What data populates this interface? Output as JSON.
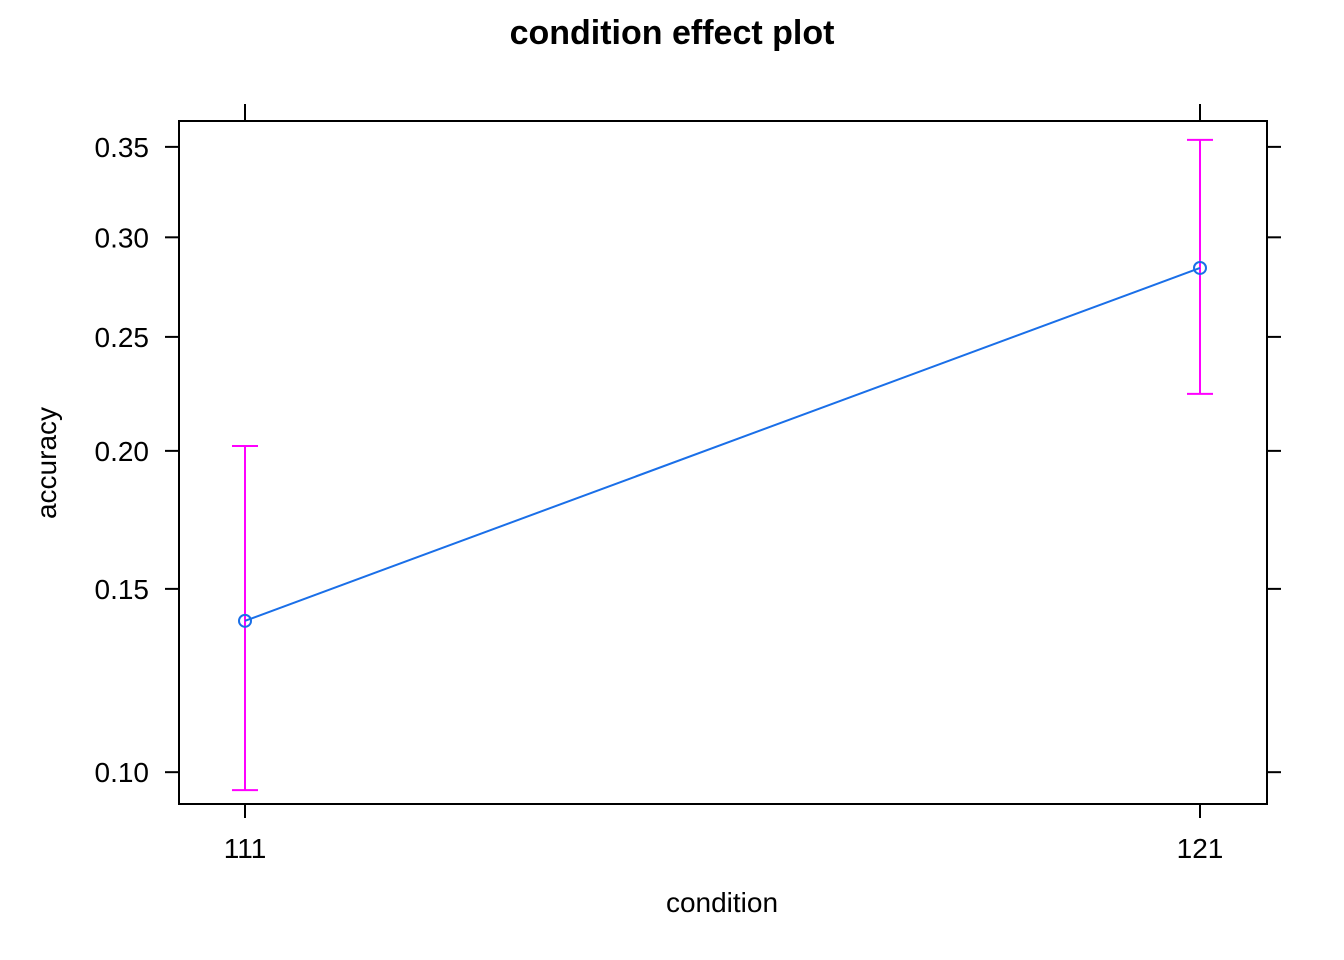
{
  "chart_data": {
    "type": "line",
    "title": "condition effect plot",
    "xlabel": "condition",
    "ylabel": "accuracy",
    "categories": [
      "111",
      "121"
    ],
    "y_scale": "logit",
    "ylim": [
      0.093,
      0.365
    ],
    "y_ticks": [
      0.1,
      0.15,
      0.2,
      0.25,
      0.3,
      0.35
    ],
    "y_tick_labels": [
      "0.10",
      "0.15",
      "0.20",
      "0.25",
      "0.30",
      "0.35"
    ],
    "series": [
      {
        "values": [
          0.14,
          0.284
        ],
        "lower": [
          0.096,
          0.224
        ],
        "upper": [
          0.202,
          0.354
        ]
      }
    ],
    "grid": false,
    "colors": {
      "line": "#1a6fe8",
      "point": "#1a6fe8",
      "error_bar": "#ff00ff",
      "axis": "#000000"
    }
  }
}
